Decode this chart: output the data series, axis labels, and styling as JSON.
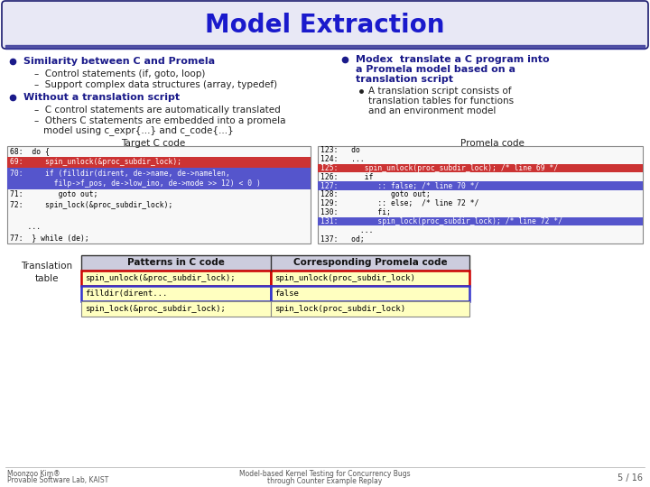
{
  "title": "Model Extraction",
  "title_color": "#1a1acc",
  "title_bg_color": "#e8e8f5",
  "title_border_color": "#1a1a6e",
  "bg_color": "#ffffff",
  "text_color": "#1a1a8a",
  "sub_text_color": "#222222",
  "left_bullet1": "Similarity between C and Promela",
  "left_sub1_1": "Control statements (if, goto, loop)",
  "left_sub1_2": "Support complex data structures (array, typedef)",
  "left_bullet2": "Without a translation script",
  "left_sub2_1": "C control statements are automatically translated",
  "left_sub2_2": "Others C statements are embedded into a promela",
  "left_sub2_2b": "model using c_expr{...} and c_code{...}",
  "right_bullet1_l1": "Modex  translate a C program into",
  "right_bullet1_l2": "a Promela model based on a",
  "right_bullet1_l3": "translation script",
  "right_sub1_l1": "A translation script consists of",
  "right_sub1_l2": "translation tables for functions",
  "right_sub1_l3": "and an environment model",
  "target_c_label": "Target C code",
  "promela_label": "Promela code",
  "c_code_lines": [
    [
      "68:  do {",
      false
    ],
    [
      "69:     spin_unlock(&proc_subdir_lock);",
      true
    ],
    [
      "70:     if (filldir(dirent, de->name, de->namelen,",
      false
    ],
    [
      "          filp->f_pos, de->low_ino, de->mode >> 12) < 0 )",
      true
    ],
    [
      "71:        goto out;",
      false
    ],
    [
      "72:     spin_lock(&proc_subdir_lock);",
      false
    ],
    [
      "",
      false
    ],
    [
      "    ...",
      false
    ],
    [
      "77:  } while (de);",
      false
    ]
  ],
  "p_code_lines": [
    [
      "123:   do",
      false
    ],
    [
      "124:   ...",
      false
    ],
    [
      "125:      spin_unlock(proc_subdir_lock); /* line 69 */",
      true
    ],
    [
      "126:      if",
      false
    ],
    [
      "127:         :: false; /* line 70 */",
      true
    ],
    [
      "128:            goto out;",
      false
    ],
    [
      "129:         :: else;  /* line 72 */",
      false
    ],
    [
      "130:         fi;",
      false
    ],
    [
      "131:         spin_lock(proc_subdir_lock); /* line 72 */",
      true
    ],
    [
      "         ...",
      false
    ],
    [
      "137:   od;",
      false
    ]
  ],
  "c_red_lines": [
    1
  ],
  "c_blue_lines": [
    2,
    3
  ],
  "p_red_lines": [
    2
  ],
  "p_blue_lines": [
    4
  ],
  "p_blue2_lines": [
    8
  ],
  "trans_label": "Translation\ntable",
  "patterns_header": "Patterns in C code",
  "promela_header": "Corresponding Promela code",
  "pattern_rows": [
    [
      "spin_unlock(&proc_subdir_lock);",
      "spin_unlock(proc_subdir_lock)",
      "red"
    ],
    [
      "filldir(dirent...",
      "false",
      "blue"
    ],
    [
      "spin_lock(&proc_subdir_lock);",
      "spin_lock(proc_subdir_lock)",
      "none"
    ]
  ],
  "footer_left1": "Moonzoo Kim®",
  "footer_left2": "Provable Software Lab, KAIST",
  "footer_center": "Model-based Kernel Testing for Concurrency Bugs\nthrough Counter Example Replay",
  "footer_right": "5 / 16"
}
